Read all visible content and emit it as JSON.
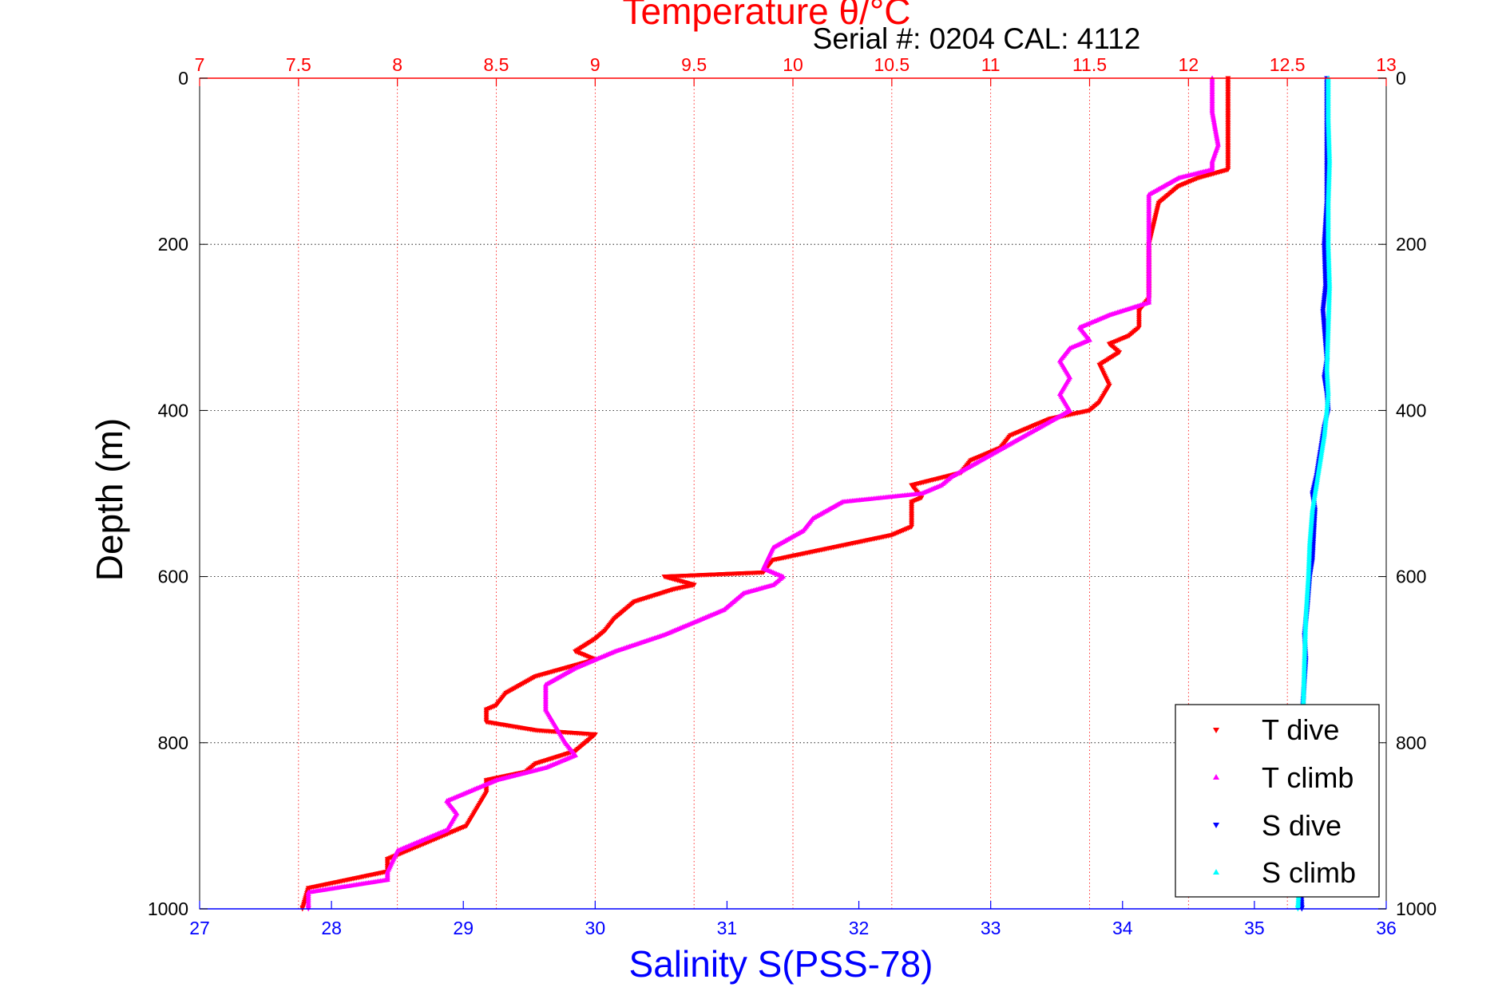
{
  "chart_data": {
    "type": "scatter",
    "title": "Serial #: 0204  CAL: 4112",
    "top_axis": {
      "label": "Temperature θ/°C",
      "range": [
        7,
        13
      ],
      "ticks": [
        "7",
        "7.5",
        "8",
        "8.5",
        "9",
        "9.5",
        "10",
        "10.5",
        "11",
        "11.5",
        "12",
        "12.5",
        "13"
      ],
      "color": "#ff0000"
    },
    "bottom_axis": {
      "label": "Salinity S(PSS-78)",
      "range": [
        27,
        36
      ],
      "ticks": [
        "27",
        "28",
        "29",
        "30",
        "31",
        "32",
        "33",
        "34",
        "35",
        "36"
      ],
      "color": "#0000ff"
    },
    "y_axis": {
      "label": "Depth (m)",
      "range": [
        0,
        1000
      ],
      "reversed": true,
      "ticks": [
        "0",
        "200",
        "400",
        "600",
        "800",
        "1000"
      ],
      "color": "#000000"
    },
    "grid": true,
    "legend_position": "bottom-right",
    "series": [
      {
        "name": "T dive",
        "axis": "temperature",
        "marker": "triangle-down",
        "color": "#ff0000",
        "points": [
          [
            12.2,
            0
          ],
          [
            12.2,
            50
          ],
          [
            12.2,
            110
          ],
          [
            12.05,
            120
          ],
          [
            11.95,
            130
          ],
          [
            11.85,
            150
          ],
          [
            11.8,
            200
          ],
          [
            11.8,
            265
          ],
          [
            11.75,
            280
          ],
          [
            11.75,
            300
          ],
          [
            11.7,
            310
          ],
          [
            11.6,
            320
          ],
          [
            11.65,
            330
          ],
          [
            11.55,
            345
          ],
          [
            11.6,
            370
          ],
          [
            11.55,
            390
          ],
          [
            11.5,
            400
          ],
          [
            11.3,
            410
          ],
          [
            11.1,
            430
          ],
          [
            11.05,
            445
          ],
          [
            10.9,
            460
          ],
          [
            10.85,
            475
          ],
          [
            10.6,
            490
          ],
          [
            10.65,
            505
          ],
          [
            10.6,
            510
          ],
          [
            10.6,
            540
          ],
          [
            10.55,
            545
          ],
          [
            10.5,
            550
          ],
          [
            10.3,
            560
          ],
          [
            9.9,
            580
          ],
          [
            9.85,
            595
          ],
          [
            9.35,
            600
          ],
          [
            9.5,
            610
          ],
          [
            9.4,
            615
          ],
          [
            9.2,
            630
          ],
          [
            9.1,
            650
          ],
          [
            9.05,
            665
          ],
          [
            9.0,
            675
          ],
          [
            8.9,
            690
          ],
          [
            9.0,
            700
          ],
          [
            8.7,
            720
          ],
          [
            8.55,
            740
          ],
          [
            8.5,
            755
          ],
          [
            8.45,
            760
          ],
          [
            8.45,
            775
          ],
          [
            8.7,
            785
          ],
          [
            9.0,
            790
          ],
          [
            8.9,
            810
          ],
          [
            8.7,
            825
          ],
          [
            8.65,
            835
          ],
          [
            8.45,
            845
          ],
          [
            8.45,
            860
          ],
          [
            8.4,
            880
          ],
          [
            8.35,
            900
          ],
          [
            8.1,
            925
          ],
          [
            7.95,
            940
          ],
          [
            7.95,
            955
          ],
          [
            7.75,
            965
          ],
          [
            7.55,
            975
          ],
          [
            7.52,
            1000
          ]
        ]
      },
      {
        "name": "T climb",
        "axis": "temperature",
        "marker": "triangle-up",
        "color": "#ff00ff",
        "points": [
          [
            12.12,
            0
          ],
          [
            12.12,
            40
          ],
          [
            12.15,
            80
          ],
          [
            12.12,
            100
          ],
          [
            12.12,
            110
          ],
          [
            11.95,
            120
          ],
          [
            11.8,
            140
          ],
          [
            11.8,
            160
          ],
          [
            11.8,
            200
          ],
          [
            11.8,
            250
          ],
          [
            11.8,
            270
          ],
          [
            11.6,
            285
          ],
          [
            11.5,
            295
          ],
          [
            11.45,
            300
          ],
          [
            11.5,
            315
          ],
          [
            11.4,
            325
          ],
          [
            11.35,
            340
          ],
          [
            11.4,
            360
          ],
          [
            11.35,
            380
          ],
          [
            11.4,
            400
          ],
          [
            11.25,
            420
          ],
          [
            11.1,
            440
          ],
          [
            10.95,
            460
          ],
          [
            10.8,
            480
          ],
          [
            10.75,
            490
          ],
          [
            10.65,
            500
          ],
          [
            10.45,
            505
          ],
          [
            10.25,
            510
          ],
          [
            10.1,
            530
          ],
          [
            10.05,
            545
          ],
          [
            9.9,
            565
          ],
          [
            9.85,
            590
          ],
          [
            9.95,
            600
          ],
          [
            9.9,
            610
          ],
          [
            9.75,
            620
          ],
          [
            9.65,
            640
          ],
          [
            9.45,
            660
          ],
          [
            9.35,
            670
          ],
          [
            9.1,
            690
          ],
          [
            8.9,
            710
          ],
          [
            8.75,
            730
          ],
          [
            8.75,
            760
          ],
          [
            8.8,
            780
          ],
          [
            8.85,
            800
          ],
          [
            8.9,
            815
          ],
          [
            8.75,
            830
          ],
          [
            8.5,
            845
          ],
          [
            8.35,
            860
          ],
          [
            8.25,
            870
          ],
          [
            8.3,
            885
          ],
          [
            8.25,
            905
          ],
          [
            8.0,
            930
          ],
          [
            7.95,
            955
          ],
          [
            7.95,
            965
          ],
          [
            7.55,
            980
          ],
          [
            7.55,
            1000
          ]
        ]
      },
      {
        "name": "S dive",
        "axis": "salinity",
        "marker": "triangle-down",
        "color": "#0000ff",
        "points": [
          [
            35.55,
            0
          ],
          [
            35.55,
            50
          ],
          [
            35.55,
            100
          ],
          [
            35.55,
            150
          ],
          [
            35.53,
            200
          ],
          [
            35.54,
            250
          ],
          [
            35.52,
            280
          ],
          [
            35.54,
            320
          ],
          [
            35.55,
            340
          ],
          [
            35.53,
            360
          ],
          [
            35.55,
            380
          ],
          [
            35.56,
            400
          ],
          [
            35.53,
            420
          ],
          [
            35.5,
            450
          ],
          [
            35.47,
            480
          ],
          [
            35.44,
            500
          ],
          [
            35.46,
            520
          ],
          [
            35.45,
            550
          ],
          [
            35.44,
            580
          ],
          [
            35.42,
            600
          ],
          [
            35.4,
            640
          ],
          [
            35.38,
            670
          ],
          [
            35.39,
            700
          ],
          [
            35.37,
            750
          ],
          [
            35.35,
            800
          ],
          [
            35.35,
            850
          ],
          [
            35.34,
            900
          ],
          [
            35.35,
            950
          ],
          [
            35.36,
            1000
          ]
        ]
      },
      {
        "name": "S climb",
        "axis": "salinity",
        "marker": "triangle-up",
        "color": "#00ffff",
        "points": [
          [
            35.56,
            0
          ],
          [
            35.56,
            50
          ],
          [
            35.57,
            100
          ],
          [
            35.56,
            150
          ],
          [
            35.56,
            200
          ],
          [
            35.57,
            250
          ],
          [
            35.56,
            300
          ],
          [
            35.55,
            350
          ],
          [
            35.56,
            380
          ],
          [
            35.55,
            400
          ],
          [
            35.53,
            430
          ],
          [
            35.5,
            460
          ],
          [
            35.47,
            490
          ],
          [
            35.44,
            520
          ],
          [
            35.42,
            560
          ],
          [
            35.41,
            600
          ],
          [
            35.39,
            650
          ],
          [
            35.38,
            700
          ],
          [
            35.37,
            760
          ],
          [
            35.36,
            820
          ],
          [
            35.35,
            880
          ],
          [
            35.35,
            940
          ],
          [
            35.33,
            1000
          ]
        ]
      }
    ]
  }
}
